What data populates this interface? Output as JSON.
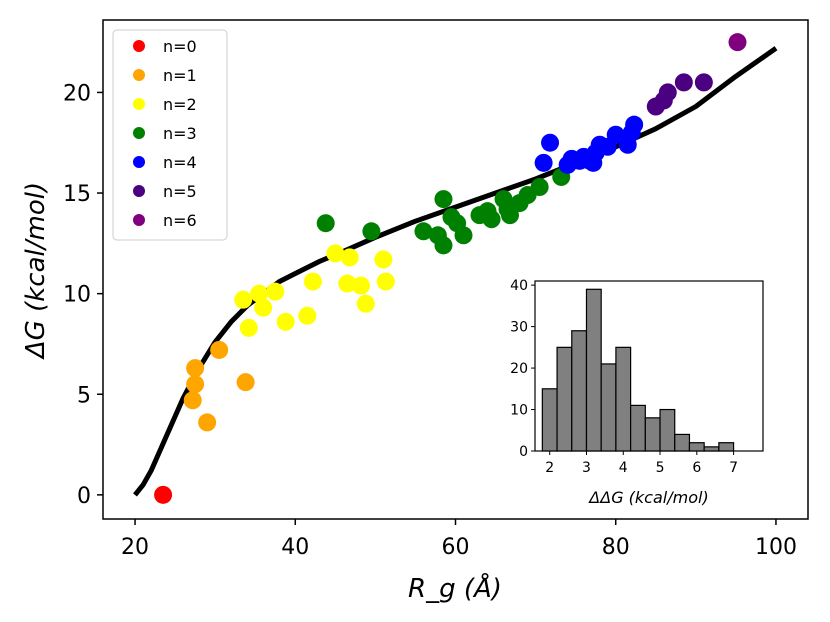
{
  "chart_data": [
    {
      "type": "scatter",
      "title": "",
      "xlabel": "R_g (Å)",
      "ylabel": "ΔG (kcal/mol)",
      "xlim": [
        16,
        104
      ],
      "ylim": [
        -1.2,
        23.6
      ],
      "xticks": [
        20,
        40,
        60,
        80,
        100
      ],
      "yticks": [
        0,
        5,
        10,
        15,
        20
      ],
      "legend_position": "top-left",
      "series": [
        {
          "name": "n=0",
          "color": "#ff0000",
          "points": [
            [
              23.5,
              0.0
            ]
          ]
        },
        {
          "name": "n=1",
          "color": "#ffa500",
          "points": [
            [
              27.5,
              6.3
            ],
            [
              27.5,
              5.5
            ],
            [
              27.2,
              4.7
            ],
            [
              29.0,
              3.6
            ],
            [
              30.5,
              7.2
            ],
            [
              33.8,
              5.6
            ]
          ]
        },
        {
          "name": "n=2",
          "color": "#ffff00",
          "points": [
            [
              33.5,
              9.7
            ],
            [
              34.2,
              8.3
            ],
            [
              35.5,
              10.0
            ],
            [
              36.0,
              9.3
            ],
            [
              37.5,
              10.1
            ],
            [
              38.8,
              8.6
            ],
            [
              41.5,
              8.9
            ],
            [
              42.2,
              10.6
            ],
            [
              45.0,
              12.0
            ],
            [
              46.5,
              10.5
            ],
            [
              46.8,
              11.8
            ],
            [
              48.2,
              10.4
            ],
            [
              48.8,
              9.5
            ],
            [
              51.0,
              11.7
            ],
            [
              51.3,
              10.6
            ]
          ]
        },
        {
          "name": "n=3",
          "color": "#008000",
          "points": [
            [
              43.8,
              13.5
            ],
            [
              49.5,
              13.1
            ],
            [
              56.0,
              13.1
            ],
            [
              57.8,
              12.9
            ],
            [
              58.5,
              14.7
            ],
            [
              58.5,
              12.4
            ],
            [
              59.5,
              13.8
            ],
            [
              60.2,
              13.5
            ],
            [
              61.0,
              12.9
            ],
            [
              63.0,
              13.9
            ],
            [
              64.0,
              14.1
            ],
            [
              64.5,
              13.7
            ],
            [
              66.0,
              14.7
            ],
            [
              66.5,
              14.2
            ],
            [
              66.8,
              13.9
            ],
            [
              68.0,
              14.5
            ],
            [
              69.0,
              14.9
            ],
            [
              70.5,
              15.3
            ],
            [
              73.2,
              15.8
            ]
          ]
        },
        {
          "name": "n=4",
          "color": "#0000ff",
          "points": [
            [
              71.0,
              16.5
            ],
            [
              71.8,
              17.5
            ],
            [
              74.0,
              16.4
            ],
            [
              74.5,
              16.7
            ],
            [
              75.5,
              16.6
            ],
            [
              76.0,
              16.8
            ],
            [
              76.8,
              16.6
            ],
            [
              77.2,
              16.5
            ],
            [
              77.5,
              17.0
            ],
            [
              78.0,
              17.4
            ],
            [
              79.0,
              17.3
            ],
            [
              80.0,
              17.9
            ],
            [
              81.5,
              17.4
            ],
            [
              82.0,
              18.0
            ],
            [
              82.3,
              18.4
            ]
          ]
        },
        {
          "name": "n=5",
          "color": "#4b0082",
          "points": [
            [
              85.0,
              19.3
            ],
            [
              86.0,
              19.6
            ],
            [
              86.5,
              20.0
            ],
            [
              88.5,
              20.5
            ],
            [
              91.0,
              20.5
            ]
          ]
        },
        {
          "name": "n=6",
          "color": "#800080",
          "points": [
            [
              95.2,
              22.5
            ]
          ]
        }
      ],
      "fit_line": {
        "color": "#000000",
        "x": [
          20,
          21,
          22,
          23,
          24,
          25,
          26,
          28,
          30,
          32,
          34,
          36,
          38,
          40,
          43,
          46,
          50,
          55,
          60,
          65,
          70,
          75,
          80,
          85,
          90,
          95,
          100
        ],
        "y": [
          0,
          0.5,
          1.2,
          2.1,
          3.0,
          3.9,
          4.8,
          6.3,
          7.6,
          8.6,
          9.4,
          10.0,
          10.6,
          11.0,
          11.6,
          12.1,
          12.8,
          13.6,
          14.3,
          15.0,
          15.7,
          16.5,
          17.3,
          18.2,
          19.3,
          20.8,
          22.2
        ]
      }
    },
    {
      "type": "bar",
      "title": "",
      "xlabel": "ΔΔG (kcal/mol)",
      "ylabel": "",
      "xlim": [
        1.6,
        7.8
      ],
      "ylim": [
        0,
        41
      ],
      "xticks": [
        2,
        3,
        4,
        5,
        6,
        7
      ],
      "yticks": [
        0,
        10,
        20,
        30,
        40
      ],
      "bin_edges": [
        1.8,
        2.2,
        2.6,
        3.0,
        3.4,
        3.8,
        4.2,
        4.6,
        5.0,
        5.4,
        5.8,
        6.2,
        6.6,
        7.0,
        7.4
      ],
      "counts": [
        15,
        25,
        29,
        39,
        21,
        25,
        11,
        8,
        10,
        4,
        2,
        1,
        2,
        0
      ],
      "bar_color": "#808080",
      "edge_color": "#000000"
    }
  ]
}
